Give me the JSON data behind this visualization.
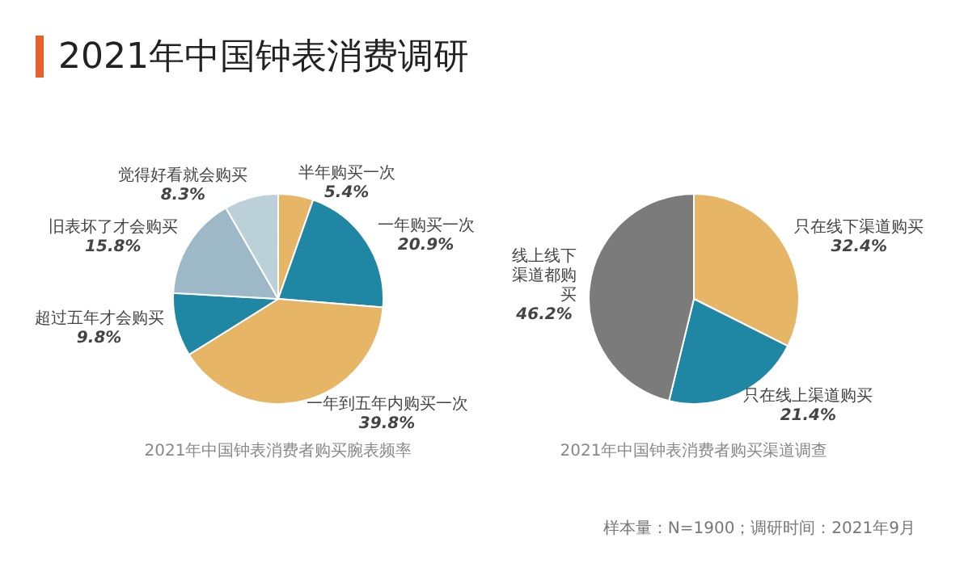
{
  "chart_data": [
    {
      "type": "pie",
      "title": "2021年中国钟表消费调研",
      "annotations": [
        "2021年中国钟表消费者购买腕表频率"
      ],
      "categories": [
        "半年购买一次",
        "一年购买一次",
        "一年到五年内购买一次",
        "超过五年才会购买",
        "旧表坏了才会购买",
        "觉得好看就会购买"
      ],
      "values": [
        5.4,
        20.9,
        39.8,
        9.8,
        15.8,
        8.3
      ],
      "value_labels": [
        "5.4%",
        "20.9%",
        "39.8%",
        "9.8%",
        "15.8%",
        "8.3%"
      ],
      "colors": [
        "#e6b566",
        "#1f87a3",
        "#e6b566",
        "#1f87a3",
        "#9db8c6",
        "#bcd0da"
      ],
      "legend": false
    },
    {
      "type": "pie",
      "annotations": [
        "2021年中国钟表消费者购买渠道调查",
        "样本量：N=1900；调研时间：2021年9月"
      ],
      "categories": [
        "只在线下渠道购买",
        "只在线上渠道购买",
        "线上线下渠道都购买"
      ],
      "values": [
        32.4,
        21.4,
        46.2
      ],
      "value_labels": [
        "32.4%",
        "21.4%",
        "46.2%"
      ],
      "colors": [
        "#e6b566",
        "#1f87a3",
        "#7b7b7b"
      ],
      "legend": false
    }
  ]
}
